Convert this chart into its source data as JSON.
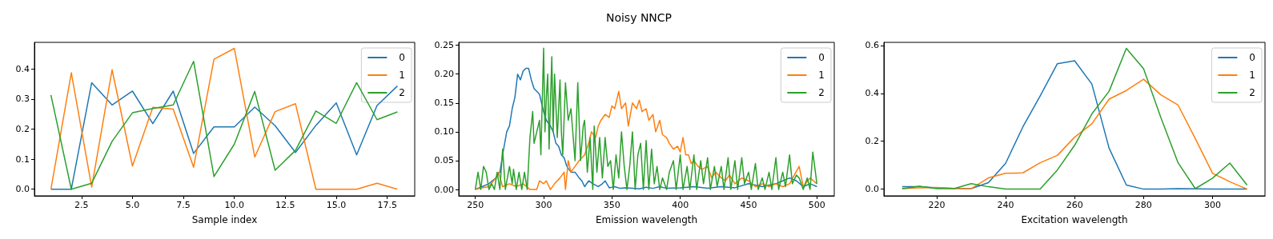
{
  "chart_data": [
    {
      "type": "line",
      "xlabel": "Sample index",
      "legend": "top right",
      "grid": false,
      "x": [
        1,
        2,
        3,
        4,
        5,
        6,
        7,
        8,
        9,
        10,
        11,
        12,
        13,
        14,
        15,
        16,
        17,
        18
      ],
      "xlim": [
        0.19,
        18.85
      ],
      "ylim": [
        -0.022,
        0.488
      ],
      "xticks": [
        {
          "value": 2.5,
          "label": "2.5"
        },
        {
          "value": 5,
          "label": "5.0"
        },
        {
          "value": 7.5,
          "label": "7.5"
        },
        {
          "value": 10,
          "label": "10.0"
        },
        {
          "value": 12.5,
          "label": "12.5"
        },
        {
          "value": 15,
          "label": "15.0"
        },
        {
          "value": 17.5,
          "label": "17.5"
        }
      ],
      "yticks": [
        {
          "value": 0,
          "label": "0.0"
        },
        {
          "value": 0.1,
          "label": "0.1"
        },
        {
          "value": 0.2,
          "label": "0.2"
        },
        {
          "value": 0.3,
          "label": "0.3"
        },
        {
          "value": 0.4,
          "label": "0.4"
        }
      ],
      "series": [
        {
          "name": "0",
          "color": "#1f77b4",
          "values": [
            0,
            0,
            0.354,
            0.28,
            0.326,
            0.218,
            0.326,
            0.119,
            0.207,
            0.207,
            0.273,
            0.211,
            0.122,
            0.212,
            0.287,
            0.114,
            0.278,
            0.343
          ]
        },
        {
          "name": "1",
          "color": "#ff7f0e",
          "values": [
            0,
            0.387,
            0.007,
            0.397,
            0.077,
            0.272,
            0.266,
            0.073,
            0.432,
            0.468,
            0.107,
            0.258,
            0.284,
            0,
            0,
            0,
            0.02,
            0
          ]
        },
        {
          "name": "2",
          "color": "#2ca02c",
          "values": [
            0.313,
            0,
            0.02,
            0.159,
            0.254,
            0.268,
            0.28,
            0.425,
            0.042,
            0.15,
            0.325,
            0.063,
            0.129,
            0.26,
            0.219,
            0.354,
            0.231,
            0.257
          ]
        }
      ]
    },
    {
      "type": "line",
      "title": "Noisy NNCP",
      "xlabel": "Emission wavelength",
      "legend": "top right",
      "grid": false,
      "xlim": [
        237.9,
        512.7
      ],
      "ylim": [
        -0.011,
        0.255
      ],
      "xticks": [
        250,
        300,
        350,
        400,
        450,
        500
      ],
      "yticks": [
        {
          "value": 0,
          "label": "0.00"
        },
        {
          "value": 0.05,
          "label": "0.05"
        },
        {
          "value": 0.1,
          "label": "0.10"
        },
        {
          "value": 0.15,
          "label": "0.15"
        },
        {
          "value": 0.2,
          "label": "0.20"
        },
        {
          "value": 0.25,
          "label": "0.25"
        }
      ],
      "series": [
        {
          "name": "0",
          "color": "#1f77b4",
          "x": [
            250,
            255,
            260,
            265,
            268,
            270,
            273,
            275,
            277,
            279,
            281,
            283,
            285,
            287,
            289,
            291,
            293,
            295,
            297,
            300,
            302,
            305,
            307,
            309,
            311,
            313,
            315,
            317,
            320,
            323,
            326,
            328,
            330,
            333,
            336,
            340,
            343,
            345,
            348,
            352,
            356,
            360,
            365,
            370,
            375,
            380,
            385,
            390,
            400,
            410,
            420,
            430,
            440,
            450,
            460,
            470,
            475,
            480,
            485,
            490,
            495,
            500
          ],
          "values": [
            0,
            0.005,
            0.01,
            0.02,
            0.03,
            0.06,
            0.1,
            0.11,
            0.14,
            0.16,
            0.2,
            0.19,
            0.205,
            0.21,
            0.21,
            0.19,
            0.175,
            0.17,
            0.165,
            0.135,
            0.12,
            0.11,
            0.1,
            0.08,
            0.075,
            0.06,
            0.055,
            0.04,
            0.03,
            0.03,
            0.02,
            0.015,
            0.005,
            0.015,
            0.01,
            0.005,
            0.01,
            0.015,
            0.003,
            0.005,
            0.002,
            0.003,
            0.002,
            0.001,
            0.004,
            0.002,
            0.005,
            0.002,
            0.003,
            0.005,
            0.002,
            0.005,
            0.003,
            0.01,
            0.005,
            0.01,
            0.015,
            0.02,
            0.015,
            0.005,
            0.01,
            0.005
          ]
        },
        {
          "name": "1",
          "color": "#ff7f0e",
          "x": [
            250,
            255,
            260,
            265,
            267,
            270,
            275,
            280,
            285,
            290,
            295,
            297,
            300,
            302,
            305,
            308,
            312,
            315,
            316,
            318,
            320,
            323,
            326,
            330,
            333,
            335,
            338,
            340,
            342,
            345,
            348,
            350,
            352,
            355,
            357,
            360,
            362,
            365,
            368,
            370,
            372,
            375,
            377,
            380,
            382,
            385,
            387,
            390,
            392,
            395,
            398,
            400,
            402,
            404,
            406,
            408,
            410,
            413,
            416,
            420,
            423,
            426,
            430,
            433,
            436,
            440,
            445,
            450,
            455,
            460,
            465,
            470,
            475,
            480,
            487,
            490,
            495,
            500
          ],
          "values": [
            0,
            0.003,
            0.005,
            0.02,
            0.03,
            0.005,
            0.01,
            0.005,
            0.01,
            0,
            0,
            0.015,
            0.01,
            0.015,
            0,
            0.01,
            0.02,
            0.03,
            0,
            0.05,
            0.03,
            0.04,
            0.05,
            0.06,
            0.08,
            0.1,
            0.09,
            0.11,
            0.12,
            0.13,
            0.125,
            0.145,
            0.14,
            0.17,
            0.14,
            0.15,
            0.11,
            0.15,
            0.14,
            0.155,
            0.135,
            0.14,
            0.12,
            0.13,
            0.1,
            0.12,
            0.095,
            0.09,
            0.08,
            0.07,
            0.075,
            0.065,
            0.09,
            0.06,
            0.06,
            0.045,
            0.05,
            0.04,
            0.035,
            0.04,
            0.02,
            0.03,
            0.02,
            0.015,
            0.025,
            0.01,
            0.02,
            0.015,
            0.005,
            0.01,
            0.005,
            0.01,
            0.005,
            0.01,
            0.04,
            0.005,
            0.02,
            0.01
          ]
        },
        {
          "name": "2",
          "color": "#2ca02c",
          "x": [
            250,
            252,
            254,
            256,
            258,
            260,
            262,
            264,
            266,
            268,
            270,
            272,
            275,
            277,
            278,
            280,
            282,
            284,
            286,
            288,
            290,
            292,
            293,
            295,
            297,
            298,
            300,
            301,
            302,
            303,
            304,
            306,
            307,
            308,
            310,
            312,
            313,
            314,
            316,
            318,
            320,
            322,
            323,
            325,
            327,
            329,
            330,
            332,
            334,
            336,
            337,
            339,
            341,
            343,
            345,
            347,
            349,
            351,
            353,
            355,
            357,
            359,
            361,
            363,
            365,
            367,
            369,
            371,
            373,
            375,
            377,
            379,
            381,
            383,
            385,
            387,
            390,
            392,
            395,
            397,
            400,
            402,
            405,
            407,
            410,
            412,
            415,
            417,
            420,
            422,
            425,
            427,
            430,
            432,
            435,
            437,
            440,
            442,
            445,
            447,
            450,
            452,
            455,
            457,
            460,
            462,
            465,
            467,
            470,
            472,
            475,
            477,
            480,
            482,
            485,
            487,
            490,
            493,
            495,
            497,
            500
          ],
          "values": [
            0,
            0.03,
            0,
            0.04,
            0.03,
            0,
            0.01,
            0,
            0.03,
            0,
            0.07,
            0,
            0.04,
            0.01,
            0.035,
            0,
            0.03,
            0,
            0.03,
            0,
            0.09,
            0.135,
            0.08,
            0.1,
            0.12,
            0.06,
            0.245,
            0.1,
            0.16,
            0.2,
            0.07,
            0.23,
            0.1,
            0.2,
            0.09,
            0.19,
            0.1,
            0.06,
            0.185,
            0.12,
            0.14,
            0.08,
            0.05,
            0.185,
            0.05,
            0.11,
            0.12,
            0.03,
            0.09,
            0,
            0.11,
            0.03,
            0.09,
            0.02,
            0.09,
            0.04,
            0.05,
            0,
            0.06,
            0.02,
            0.1,
            0.04,
            0,
            0.04,
            0.1,
            0,
            0.06,
            0.08,
            0,
            0.085,
            0,
            0.07,
            0.01,
            0.04,
            0,
            0.02,
            0,
            0.03,
            0.05,
            0,
            0.06,
            0,
            0.04,
            0,
            0.06,
            0,
            0.05,
            0.01,
            0.055,
            0,
            0.04,
            0.005,
            0.04,
            0,
            0.055,
            0,
            0.05,
            0,
            0.055,
            0.01,
            0.03,
            0,
            0.045,
            0,
            0.02,
            0,
            0.03,
            0,
            0.055,
            0,
            0.03,
            0.005,
            0.06,
            0.01,
            0.025,
            0.02,
            0,
            0.02,
            0,
            0.065,
            0.01
          ]
        }
      ]
    },
    {
      "type": "line",
      "xlabel": "Excitation wavelength",
      "legend": "top right",
      "grid": false,
      "x": [
        210,
        215,
        220,
        225,
        230,
        235,
        240,
        245,
        250,
        255,
        260,
        265,
        270,
        275,
        280,
        285,
        290,
        295,
        300,
        305,
        310
      ],
      "xlim": [
        204.7,
        315.2
      ],
      "ylim": [
        -0.028,
        0.613
      ],
      "xticks": [
        220,
        240,
        260,
        280,
        300
      ],
      "yticks": [
        {
          "value": 0,
          "label": "0.0"
        },
        {
          "value": 0.2,
          "label": "0.2"
        },
        {
          "value": 0.4,
          "label": "0.4"
        },
        {
          "value": 0.6,
          "label": "0.6"
        }
      ],
      "series": [
        {
          "name": "0",
          "color": "#1f77b4",
          "values": [
            0.01,
            0.01,
            0.005,
            0.003,
            0.002,
            0.027,
            0.108,
            0.26,
            0.389,
            0.524,
            0.536,
            0.439,
            0.171,
            0.017,
            0,
            0,
            0.002,
            0.001,
            0,
            0,
            0
          ]
        },
        {
          "name": "1",
          "color": "#ff7f0e",
          "values": [
            0.002,
            0.005,
            0.007,
            0.003,
            0.002,
            0.047,
            0.066,
            0.068,
            0.11,
            0.141,
            0.217,
            0.273,
            0.376,
            0.412,
            0.459,
            0.394,
            0.351,
            0.211,
            0.066,
            0.031,
            0
          ]
        },
        {
          "name": "2",
          "color": "#2ca02c",
          "values": [
            0.002,
            0.012,
            0.002,
            0.002,
            0.023,
            0.01,
            0,
            0,
            0,
            0.08,
            0.183,
            0.314,
            0.409,
            0.588,
            0.503,
            0.299,
            0.11,
            0.002,
            0.046,
            0.109,
            0.017
          ]
        }
      ]
    }
  ]
}
